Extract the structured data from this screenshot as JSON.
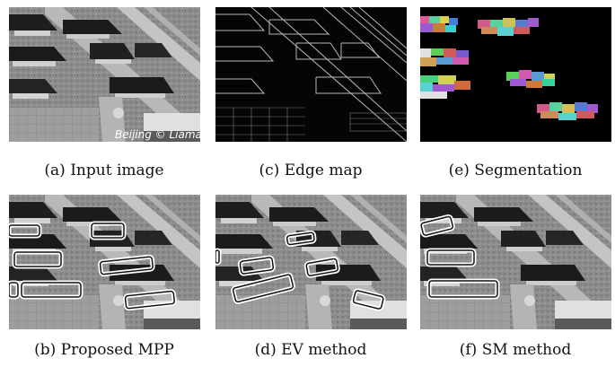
{
  "figure": {
    "captions": {
      "a": "(a) Input image",
      "c": "(c) Edge map",
      "e": "(e) Segmentation",
      "b": "(b) Proposed MPP",
      "d": "(d) EV method",
      "f": "(f) SM method"
    },
    "watermark": "Beijing © Liama"
  },
  "colors": {
    "detection_outline": "#ffffff",
    "detection_inner": "#111111",
    "segmentation_background": "#000000"
  }
}
